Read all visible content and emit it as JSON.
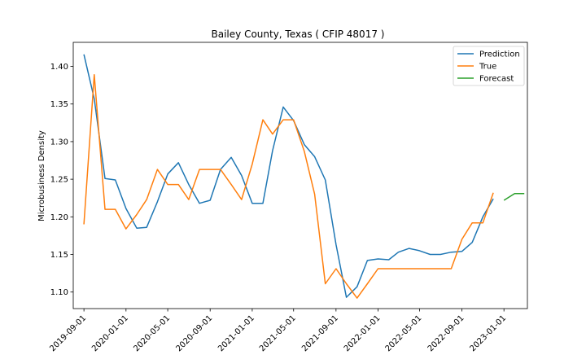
{
  "chart_data": {
    "type": "line",
    "title": "Bailey County, Texas ( CFIP 48017 )",
    "xlabel": "",
    "ylabel": "Microbusiness Density",
    "xlim": [
      "2019-08-01",
      "2023-03-10"
    ],
    "ylim": [
      1.078,
      1.432
    ],
    "x_ticks": [
      "2019-09-01",
      "2020-01-01",
      "2020-05-01",
      "2020-09-01",
      "2021-01-01",
      "2021-05-01",
      "2021-09-01",
      "2022-01-01",
      "2022-05-01",
      "2022-09-01",
      "2023-01-01"
    ],
    "y_ticks": [
      "1.10",
      "1.15",
      "1.20",
      "1.25",
      "1.30",
      "1.35",
      "1.40"
    ],
    "legend_position": "top-right",
    "grid": false,
    "series": [
      {
        "name": "Prediction",
        "color": "#1f77b4",
        "x": [
          "2019-09-01",
          "2019-10-01",
          "2019-11-01",
          "2019-12-01",
          "2020-01-01",
          "2020-02-01",
          "2020-03-01",
          "2020-04-01",
          "2020-05-01",
          "2020-06-01",
          "2020-07-01",
          "2020-08-01",
          "2020-09-01",
          "2020-10-01",
          "2020-11-01",
          "2020-12-01",
          "2021-01-01",
          "2021-02-01",
          "2021-03-01",
          "2021-04-01",
          "2021-05-01",
          "2021-06-01",
          "2021-07-01",
          "2021-08-01",
          "2021-09-01",
          "2021-10-01",
          "2021-11-01",
          "2021-12-01",
          "2022-01-01",
          "2022-02-01",
          "2022-03-01",
          "2022-04-01",
          "2022-05-01",
          "2022-06-01",
          "2022-07-01",
          "2022-08-01",
          "2022-09-01",
          "2022-10-01",
          "2022-11-01",
          "2022-12-01"
        ],
        "values": [
          1.416,
          1.357,
          1.251,
          1.249,
          1.211,
          1.185,
          1.186,
          1.22,
          1.257,
          1.272,
          1.243,
          1.218,
          1.222,
          1.263,
          1.279,
          1.255,
          1.218,
          1.218,
          1.288,
          1.346,
          1.328,
          1.296,
          1.28,
          1.249,
          1.163,
          1.093,
          1.107,
          1.142,
          1.144,
          1.143,
          1.153,
          1.158,
          1.155,
          1.15,
          1.15,
          1.153,
          1.154,
          1.166,
          1.2,
          1.224
        ]
      },
      {
        "name": "True",
        "color": "#ff7f0e",
        "x": [
          "2019-09-01",
          "2019-10-01",
          "2019-11-01",
          "2019-12-01",
          "2020-01-01",
          "2020-02-01",
          "2020-03-01",
          "2020-04-01",
          "2020-05-01",
          "2020-06-01",
          "2020-07-01",
          "2020-08-01",
          "2020-09-01",
          "2020-10-01",
          "2020-11-01",
          "2020-12-01",
          "2021-01-01",
          "2021-02-01",
          "2021-03-01",
          "2021-04-01",
          "2021-05-01",
          "2021-06-01",
          "2021-07-01",
          "2021-08-01",
          "2021-09-01",
          "2021-10-01",
          "2021-11-01",
          "2021-12-01",
          "2022-01-01",
          "2022-02-01",
          "2022-03-01",
          "2022-04-01",
          "2022-05-01",
          "2022-06-01",
          "2022-07-01",
          "2022-08-01",
          "2022-09-01",
          "2022-10-01",
          "2022-11-01",
          "2022-12-01"
        ],
        "values": [
          1.19,
          1.389,
          1.21,
          1.21,
          1.184,
          1.203,
          1.223,
          1.263,
          1.243,
          1.243,
          1.223,
          1.263,
          1.263,
          1.263,
          1.243,
          1.223,
          1.27,
          1.329,
          1.31,
          1.329,
          1.329,
          1.287,
          1.23,
          1.111,
          1.131,
          1.111,
          1.092,
          1.111,
          1.131,
          1.131,
          1.131,
          1.131,
          1.131,
          1.131,
          1.131,
          1.131,
          1.17,
          1.192,
          1.192,
          1.232
        ]
      },
      {
        "name": "Forecast",
        "color": "#2ca02c",
        "x": [
          "2023-01-01",
          "2023-02-01",
          "2023-03-01"
        ],
        "values": [
          1.222,
          1.231,
          1.231
        ]
      }
    ]
  }
}
